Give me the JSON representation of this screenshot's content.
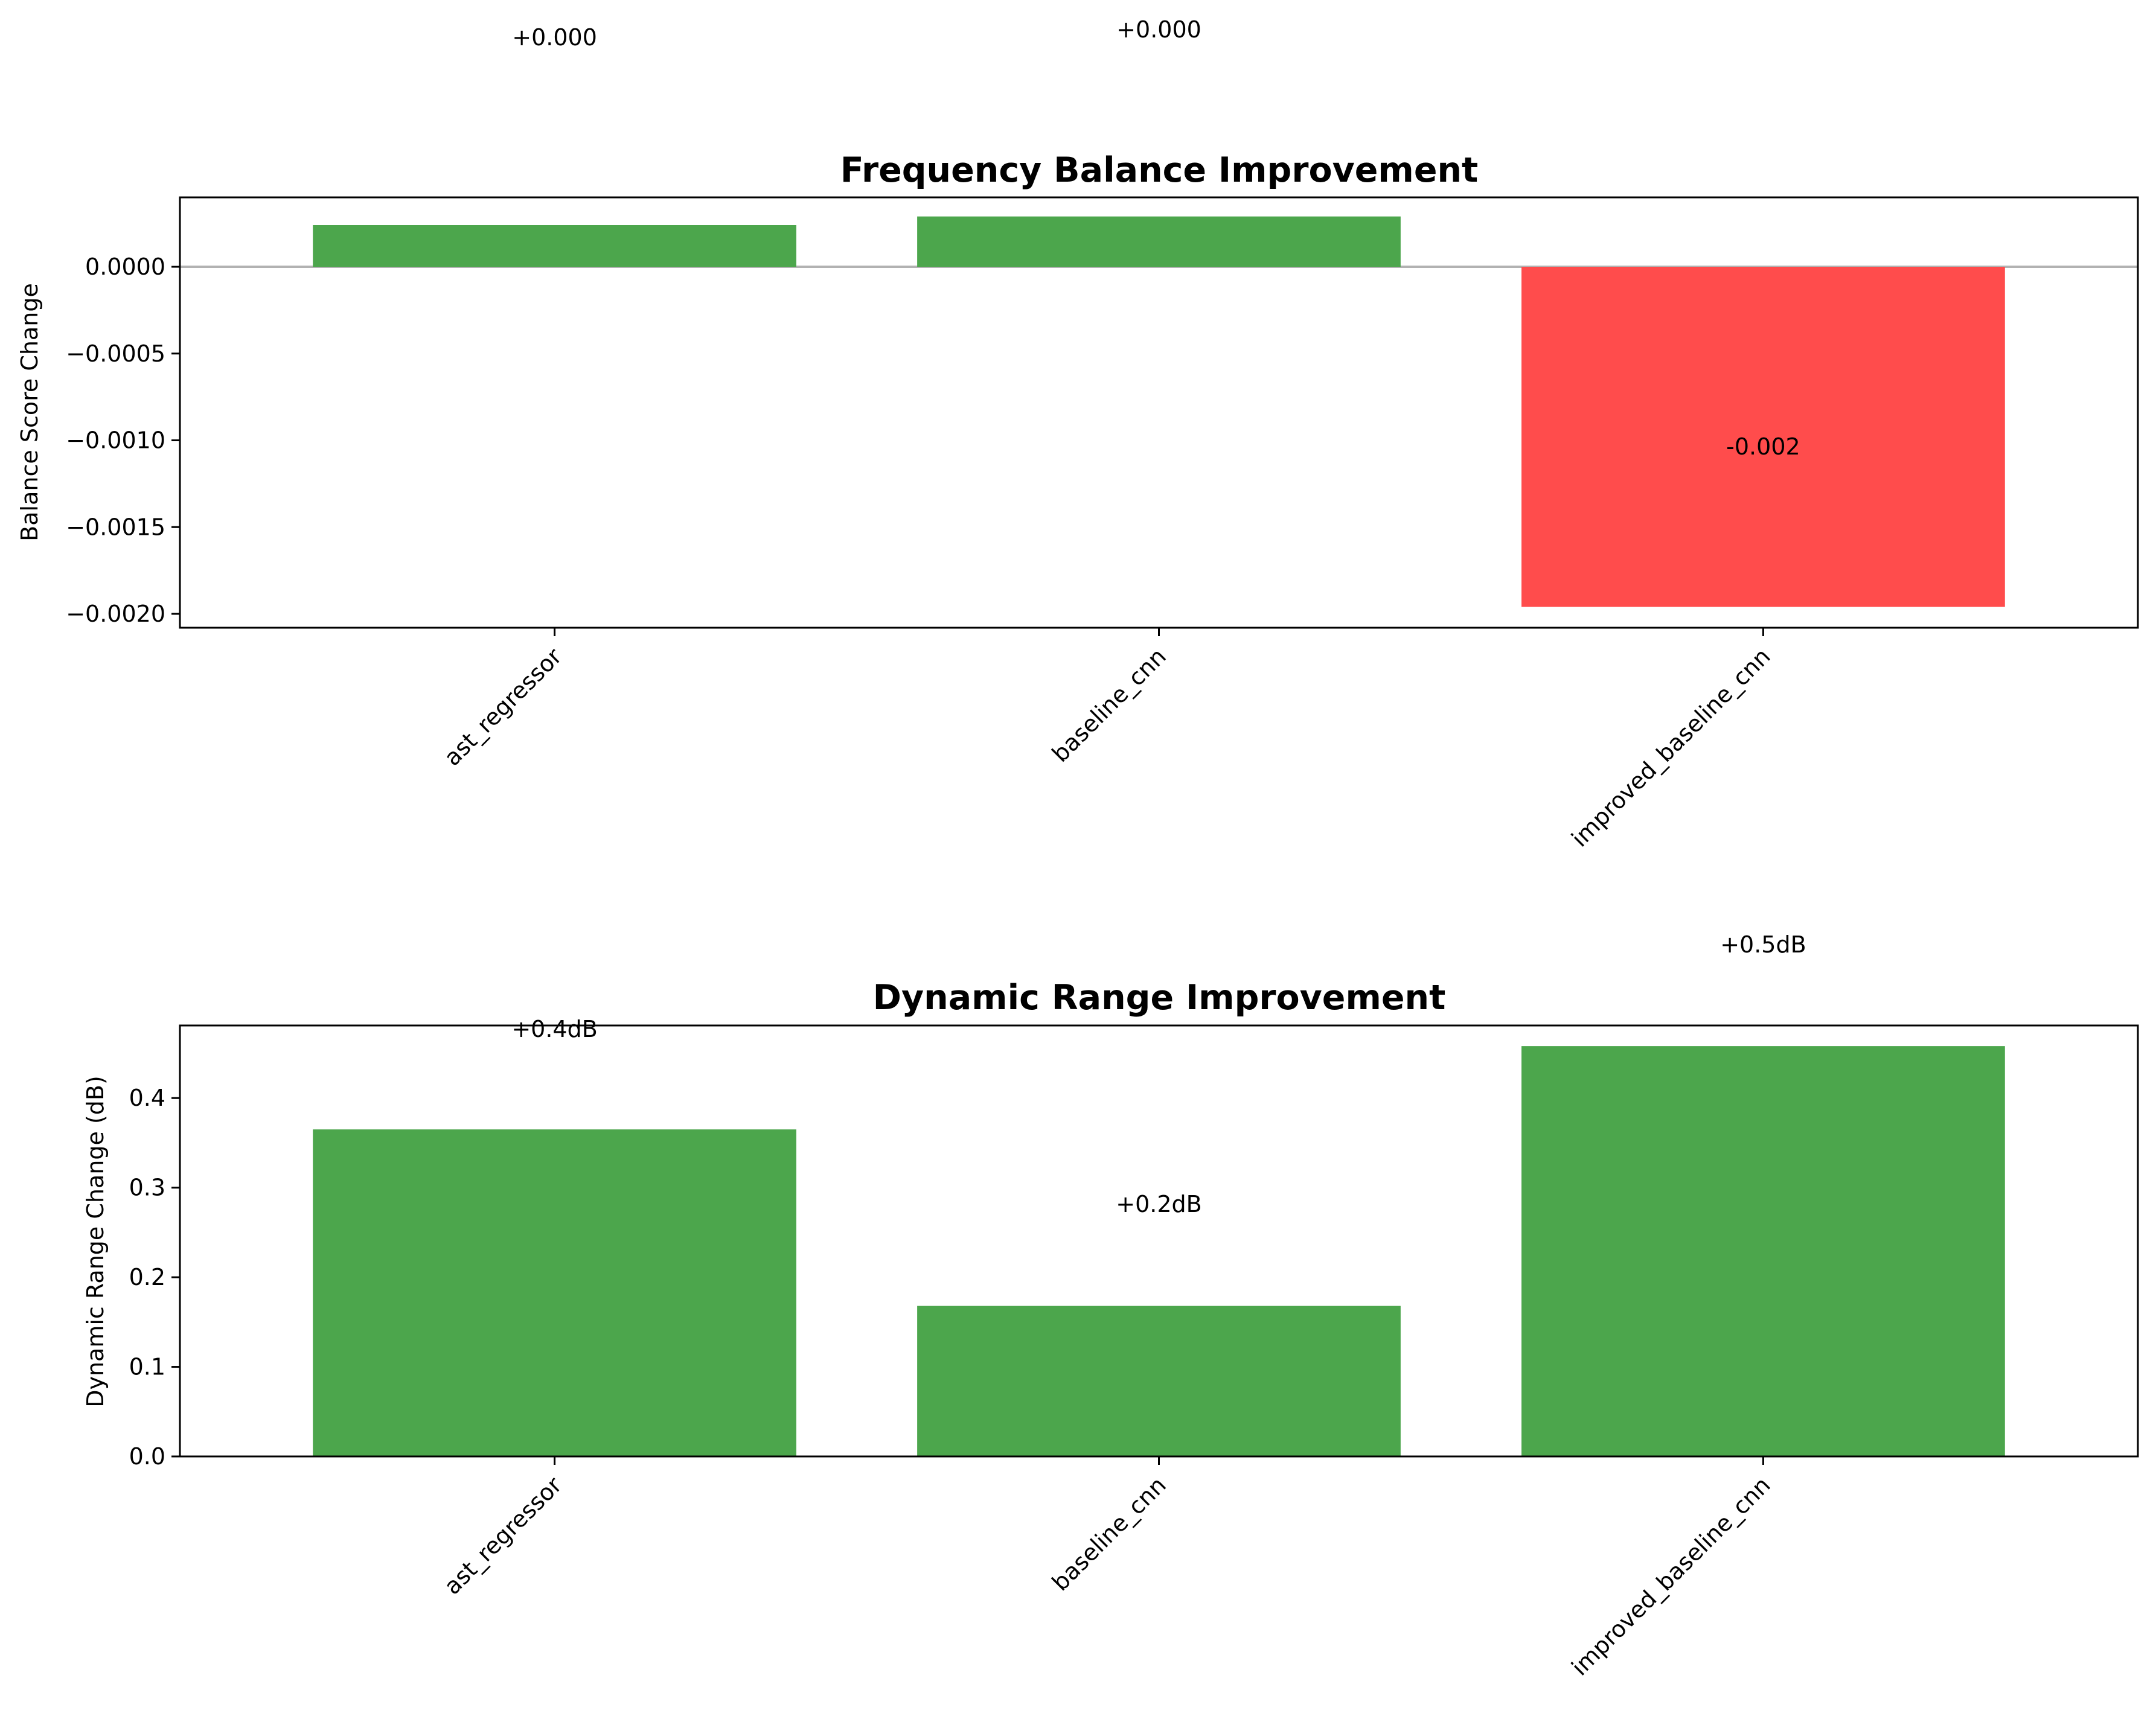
{
  "chart_data": [
    {
      "type": "bar",
      "title": "Frequency Balance Improvement",
      "ylabel": "Balance Score Change",
      "xlabel": "",
      "categories": [
        "ast_regressor",
        "baseline_cnn",
        "improved_baseline_cnn"
      ],
      "values": [
        0.00024,
        0.00029,
        -0.00196
      ],
      "value_labels": [
        "+0.000",
        "+0.000",
        "-0.002"
      ],
      "ylim": [
        -0.00208,
        0.0004
      ],
      "yticks": [
        0.0,
        -0.0005,
        -0.001,
        -0.0015,
        -0.002
      ],
      "ytick_labels": [
        "0.0000",
        "−0.0005",
        "−0.0010",
        "−0.0015",
        "−0.0020"
      ],
      "zero_line": true,
      "grid": false,
      "colors": {
        "positive": "#4ca64c",
        "negative": "#ff4c4c",
        "zero_line": "#b2b2b2"
      }
    },
    {
      "type": "bar",
      "title": "Dynamic Range Improvement",
      "ylabel": "Dynamic Range Change (dB)",
      "xlabel": "",
      "categories": [
        "ast_regressor",
        "baseline_cnn",
        "improved_baseline_cnn"
      ],
      "values": [
        0.365,
        0.168,
        0.458
      ],
      "value_labels": [
        "+0.4dB",
        "+0.2dB",
        "+0.5dB"
      ],
      "ylim": [
        0.0,
        0.481
      ],
      "yticks": [
        0.0,
        0.1,
        0.2,
        0.3,
        0.4
      ],
      "ytick_labels": [
        "0.0",
        "0.1",
        "0.2",
        "0.3",
        "0.4"
      ],
      "zero_line": false,
      "grid": false,
      "colors": {
        "positive": "#4ca64c",
        "negative": "#ff4c4c"
      }
    }
  ]
}
